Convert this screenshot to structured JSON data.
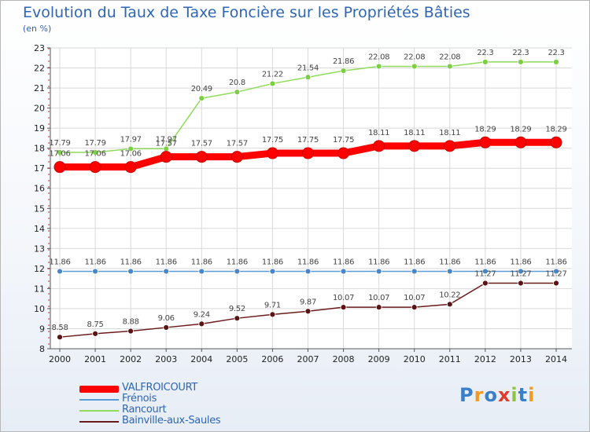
{
  "chart_data": {
    "type": "line",
    "title": "Evolution du Taux de Taxe Foncière sur les Propriétés Bâties",
    "ylabel": "(en %)",
    "xlabel": "",
    "categories": [
      "2000",
      "2001",
      "2002",
      "2003",
      "2004",
      "2005",
      "2006",
      "2007",
      "2008",
      "2009",
      "2010",
      "2011",
      "2012",
      "2013",
      "2014"
    ],
    "ylim": [
      8,
      23
    ],
    "yticks": [
      8,
      9,
      10,
      11,
      12,
      13,
      14,
      15,
      16,
      17,
      18,
      19,
      20,
      21,
      22,
      23
    ],
    "series": [
      {
        "name": "VALFROICOURT",
        "color": "#ff0000",
        "values": [
          17.06,
          17.06,
          17.06,
          17.57,
          17.57,
          17.57,
          17.75,
          17.75,
          17.75,
          18.11,
          18.11,
          18.11,
          18.29,
          18.29,
          18.29
        ],
        "labels": [
          "17.06",
          "17.06",
          "17.06",
          "17.57",
          "17.57",
          "17.57",
          "17.75",
          "17.75",
          "17.75",
          "18.11",
          "18.11",
          "18.11",
          "18.29",
          "18.29",
          "18.29"
        ]
      },
      {
        "name": "Frénois",
        "color": "#5b9bd5",
        "values": [
          11.86,
          11.86,
          11.86,
          11.86,
          11.86,
          11.86,
          11.86,
          11.86,
          11.86,
          11.86,
          11.86,
          11.86,
          11.86,
          11.86,
          11.86
        ],
        "labels": [
          "11.86",
          "11.86",
          "11.86",
          "11.86",
          "11.86",
          "11.86",
          "11.86",
          "11.86",
          "11.86",
          "11.86",
          "11.86",
          "11.86",
          "11.86",
          "11.86",
          "11.86"
        ]
      },
      {
        "name": "Rancourt",
        "color": "#8fdc5a",
        "values": [
          17.79,
          17.79,
          17.97,
          17.97,
          20.49,
          20.8,
          21.22,
          21.54,
          21.86,
          22.08,
          22.08,
          22.08,
          22.3,
          22.3,
          22.3
        ],
        "labels": [
          "17.79",
          "17.79",
          "17.97",
          "17.97",
          "20.49",
          "20.8",
          "21.22",
          "21.54",
          "21.86",
          "22.08",
          "22.08",
          "22.08",
          "22.3",
          "22.3",
          "22.3"
        ]
      },
      {
        "name": "Bainville-aux-Saules",
        "color": "#6b1a1a",
        "values": [
          8.58,
          8.75,
          8.88,
          9.06,
          9.24,
          9.52,
          9.71,
          9.87,
          10.07,
          10.07,
          10.07,
          10.22,
          11.27,
          11.27,
          11.27
        ],
        "labels": [
          "8.58",
          "8.75",
          "8.88",
          "9.06",
          "9.24",
          "9.52",
          "9.71",
          "9.87",
          "10.07",
          "10.07",
          "10.07",
          "10.22",
          "11.27",
          "11.27",
          "11.27"
        ]
      }
    ],
    "legend_position": "bottom-left"
  },
  "logo_text": "Proxiti",
  "logo_colors": [
    "#3a7fc9",
    "#f29a1e",
    "#3a7fc9",
    "#e23a2b",
    "#8cc63f",
    "#3a7fc9",
    "#f29a1e"
  ]
}
